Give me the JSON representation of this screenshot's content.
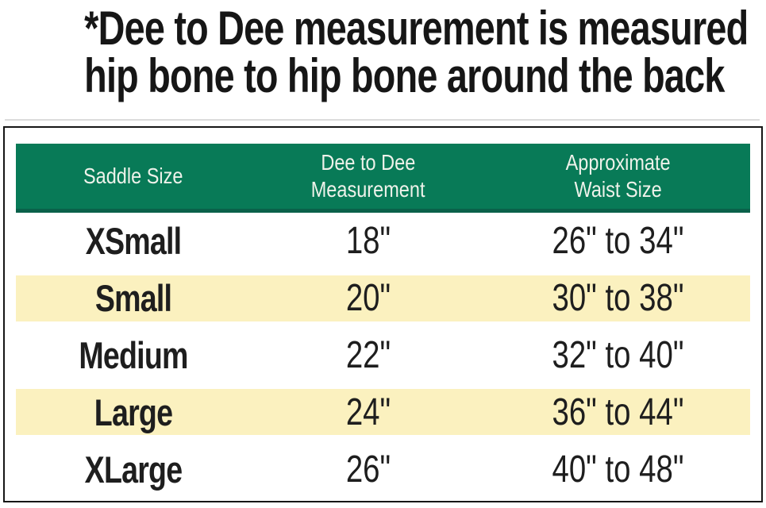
{
  "note": {
    "line1": "*Dee to Dee measurement is measured",
    "line2": "hip bone to hip bone around the back"
  },
  "table": {
    "header": {
      "col1": {
        "line1": "Saddle Size"
      },
      "col2": {
        "line1": "Dee to Dee",
        "line2": "Measurement"
      },
      "col3": {
        "line1": "Approximate",
        "line2": "Waist Size"
      }
    },
    "rows": [
      {
        "size": "XSmall",
        "dee_to_dee": "18\"",
        "waist": "26\" to 34\"",
        "striped": false
      },
      {
        "size": "Small",
        "dee_to_dee": "20\"",
        "waist": "30\" to 38\"",
        "striped": true
      },
      {
        "size": "Medium",
        "dee_to_dee": "22\"",
        "waist": "32\" to 40\"",
        "striped": false
      },
      {
        "size": "Large",
        "dee_to_dee": "24\"",
        "waist": "36\" to 44\"",
        "striped": true
      },
      {
        "size": "XLarge",
        "dee_to_dee": "26\"",
        "waist": "40\" to 48\"",
        "striped": false
      }
    ]
  },
  "colors": {
    "header_bg": "#087a57",
    "header_bg_shadow": "#0a614a",
    "header_text": "#eef2ea",
    "stripe_bg": "#fbf1bf",
    "body_text": "#1e1e1e",
    "border": "#161616"
  }
}
